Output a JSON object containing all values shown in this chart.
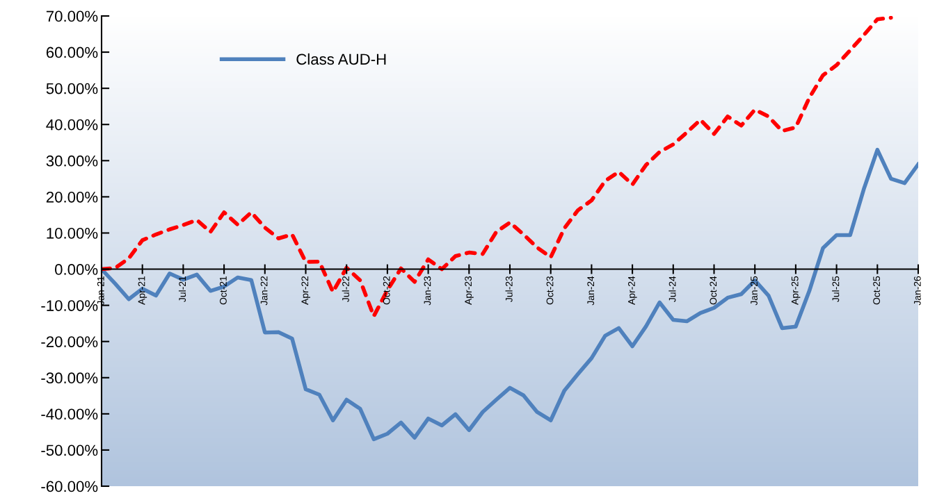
{
  "chart_data": {
    "type": "line",
    "categories": [
      "Jan-21",
      null,
      null,
      "Apr-21",
      null,
      null,
      "Jul-21",
      null,
      null,
      "Oct-21",
      null,
      null,
      "Jan-22",
      null,
      null,
      "Apr-22",
      null,
      null,
      "Jul-22",
      null,
      null,
      "Oct-22",
      null,
      null,
      "Jan-23",
      null,
      null,
      "Apr-23",
      null,
      null,
      "Jul-23",
      null,
      null,
      "Oct-23",
      null,
      null,
      "Jan-24",
      null,
      null,
      "Apr-24",
      null,
      null,
      "Jul-24",
      null,
      null,
      "Oct-24",
      null,
      null,
      "Jan-25",
      null,
      null,
      "Apr-25",
      null,
      null,
      "Jul-25",
      null,
      null,
      "Oct-25",
      null,
      null,
      "Jan-26"
    ],
    "series": [
      {
        "name": "Class AUD-H",
        "color": "#4f81bd",
        "line_style": "solid",
        "values": [
          0,
          -4,
          -8.3,
          -5.4,
          -7.3,
          -1.2,
          -2.9,
          -1.5,
          -6,
          -4.8,
          -2.3,
          -3,
          -17.5,
          -17.4,
          -19.2,
          -33.2,
          -34.7,
          -41.8,
          -36.1,
          -38.6,
          -47,
          -45.5,
          -42.4,
          -46.6,
          -41.3,
          -43.2,
          -40.1,
          -44.5,
          -39.5,
          -36.1,
          -32.8,
          -34.9,
          -39.5,
          -41.8,
          -33.6,
          -29,
          -24.6,
          -18.4,
          -16.3,
          -21.3,
          -15.8,
          -9.2,
          -14,
          -14.4,
          -12.1,
          -10.7,
          -7.9,
          -6.9,
          -3.1,
          -7.3,
          -16.3,
          -15.9,
          -6,
          5.8,
          9.4,
          9.4,
          22.1,
          33,
          25,
          23.8,
          29
        ]
      },
      {
        "color": "#ff0000",
        "line_style": "dashed",
        "values": [
          0,
          0.3,
          3,
          8,
          9.6,
          11,
          12.2,
          13.6,
          10.3,
          15.7,
          12.3,
          15.7,
          11.5,
          8.5,
          9.6,
          2,
          2.1,
          -6.3,
          0.4,
          -3.1,
          -13,
          -5.8,
          0.2,
          -3.5,
          2.7,
          0,
          3.6,
          4.6,
          4.2,
          10.3,
          12.9,
          9.6,
          6,
          3.3,
          11.3,
          16.3,
          19,
          24.4,
          26.9,
          23.4,
          28.8,
          32.4,
          34.5,
          37.8,
          41.3,
          37.4,
          42.2,
          39.7,
          44.1,
          42.2,
          38.2,
          39.2,
          47.4,
          53.6,
          56.4,
          60.5,
          64.7,
          69.1,
          69.5,
          null,
          null
        ]
      }
    ],
    "ylim": [
      -60,
      70
    ],
    "yticks": [
      {
        "value": -60,
        "label": "-60.00%"
      },
      {
        "value": -50,
        "label": "-50.00%"
      },
      {
        "value": -40,
        "label": "-40.00%"
      },
      {
        "value": -30,
        "label": "-30.00%"
      },
      {
        "value": -20,
        "label": "-20.00%"
      },
      {
        "value": -10,
        "label": "-10.00%"
      },
      {
        "value": 0,
        "label": "0.00%"
      },
      {
        "value": 10,
        "label": "10.00%"
      },
      {
        "value": 20,
        "label": "20.00%"
      },
      {
        "value": 30,
        "label": "30.00%"
      },
      {
        "value": 40,
        "label": "40.00%"
      },
      {
        "value": 50,
        "label": "50.00%"
      },
      {
        "value": 60,
        "label": "60.00%"
      },
      {
        "value": 70,
        "label": "70.00%"
      }
    ],
    "legend": "top left",
    "grid": false,
    "marker": "none"
  }
}
